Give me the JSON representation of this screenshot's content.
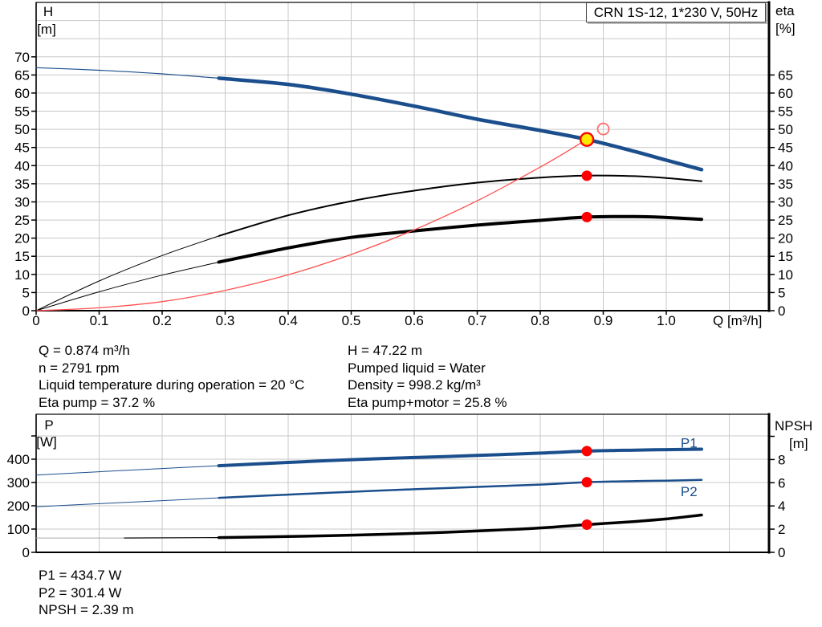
{
  "title_box": "CRN 1S-12, 1*230 V, 50Hz",
  "colors": {
    "curve_blue": "#1B4E8C",
    "curve_black": "#000000",
    "curve_red": "#FF5050",
    "marker_red": "#FF0000",
    "marker_red_light": "#FF7070",
    "marker_yellow": "#FFE600",
    "npsh_faint": "#A6A6A6",
    "grid": "#C9C9C9",
    "frame": "#000000",
    "text": "#000000"
  },
  "chart_data": [
    {
      "type": "line",
      "name": "qh-performance",
      "x_axis": {
        "unit_label": "Q [m³/h]",
        "range": [
          0,
          1.163
        ],
        "ticks": [
          [
            0,
            "0"
          ],
          [
            0.1,
            "0.1"
          ],
          [
            0.2,
            "0.2"
          ],
          [
            0.3,
            "0.3"
          ],
          [
            0.4,
            "0.4"
          ],
          [
            0.5,
            "0.5"
          ],
          [
            0.6,
            "0.6"
          ],
          [
            0.7,
            "0.7"
          ],
          [
            0.8,
            "0.8"
          ],
          [
            0.9,
            "0.9"
          ],
          [
            1.0,
            "1.0"
          ]
        ],
        "grid": [
          0.1,
          0.2,
          0.3,
          0.4,
          0.5,
          0.6,
          0.7,
          0.8,
          0.9,
          1.0,
          1.1
        ]
      },
      "y_left": {
        "label_lines": [
          "H",
          "[m]"
        ],
        "range": [
          0,
          85
        ],
        "grid": {
          "step": 5,
          "max": 80
        },
        "ticks": [
          [
            0,
            "0"
          ],
          [
            5,
            "5"
          ],
          [
            10,
            "10"
          ],
          [
            15,
            "15"
          ],
          [
            20,
            "20"
          ],
          [
            25,
            "25"
          ],
          [
            30,
            "30"
          ],
          [
            35,
            "35"
          ],
          [
            40,
            "40"
          ],
          [
            45,
            "45"
          ],
          [
            50,
            "50"
          ],
          [
            55,
            "55"
          ],
          [
            60,
            "60"
          ],
          [
            65,
            "65"
          ],
          [
            70,
            "70"
          ]
        ]
      },
      "y_right": {
        "label_lines": [
          "eta",
          "[%]"
        ],
        "range": [
          0,
          85
        ],
        "ticks": [
          [
            0,
            "0"
          ],
          [
            5,
            "5"
          ],
          [
            10,
            "10"
          ],
          [
            15,
            "15"
          ],
          [
            20,
            "20"
          ],
          [
            25,
            "25"
          ],
          [
            30,
            "30"
          ],
          [
            35,
            "35"
          ],
          [
            40,
            "40"
          ],
          [
            45,
            "45"
          ],
          [
            50,
            "50"
          ],
          [
            55,
            "55"
          ],
          [
            60,
            "60"
          ],
          [
            65,
            "65"
          ]
        ]
      },
      "series": [
        {
          "name": "head-curve-low-flow",
          "axis": "left",
          "color": "curve_blue",
          "width": 1.2,
          "points": [
            [
              0,
              67
            ],
            [
              0.1,
              66.3
            ],
            [
              0.2,
              65.3
            ],
            [
              0.29,
              64.1
            ]
          ]
        },
        {
          "name": "head-curve",
          "axis": "left",
          "color": "curve_blue",
          "width": 4.5,
          "points": [
            [
              0.29,
              64.1
            ],
            [
              0.4,
              62.4
            ],
            [
              0.5,
              59.7
            ],
            [
              0.6,
              56.4
            ],
            [
              0.7,
              52.8
            ],
            [
              0.8,
              49.7
            ],
            [
              0.874,
              47.22
            ],
            [
              0.95,
              43.9
            ],
            [
              1.0,
              41.5
            ],
            [
              1.056,
              38.9
            ]
          ]
        },
        {
          "name": "eta-pump-curve-low-flow",
          "axis": "right",
          "color": "curve_black",
          "width": 1,
          "points": [
            [
              0,
              0
            ],
            [
              0.1,
              8.2
            ],
            [
              0.2,
              15.2
            ],
            [
              0.29,
              20.6
            ]
          ]
        },
        {
          "name": "eta-pump-curve",
          "axis": "right",
          "color": "curve_black",
          "width": 2,
          "points": [
            [
              0.29,
              20.6
            ],
            [
              0.4,
              26.3
            ],
            [
              0.5,
              30.2
            ],
            [
              0.6,
              33.1
            ],
            [
              0.7,
              35.3
            ],
            [
              0.8,
              36.7
            ],
            [
              0.874,
              37.25
            ],
            [
              0.95,
              37.1
            ],
            [
              1.0,
              36.6
            ],
            [
              1.056,
              35.7
            ]
          ]
        },
        {
          "name": "eta-pump-motor-curve-low-flow",
          "axis": "right",
          "color": "curve_black",
          "width": 1,
          "points": [
            [
              0,
              0
            ],
            [
              0.1,
              5.2
            ],
            [
              0.2,
              9.8
            ],
            [
              0.29,
              13.4
            ]
          ]
        },
        {
          "name": "eta-pump-motor-curve",
          "axis": "right",
          "color": "curve_black",
          "width": 4,
          "points": [
            [
              0.29,
              13.4
            ],
            [
              0.4,
              17.3
            ],
            [
              0.5,
              20.2
            ],
            [
              0.6,
              22.0
            ],
            [
              0.7,
              23.6
            ],
            [
              0.8,
              24.9
            ],
            [
              0.874,
              25.8
            ],
            [
              0.95,
              25.95
            ],
            [
              1.0,
              25.7
            ],
            [
              1.056,
              25.2
            ]
          ]
        },
        {
          "name": "system-curve",
          "axis": "left",
          "color": "curve_red",
          "width": 1.3,
          "points": [
            [
              0,
              0
            ],
            [
              0.1,
              0.8
            ],
            [
              0.2,
              2.5
            ],
            [
              0.3,
              5.6
            ],
            [
              0.4,
              9.9
            ],
            [
              0.5,
              15.5
            ],
            [
              0.6,
              22.3
            ],
            [
              0.7,
              30.3
            ],
            [
              0.8,
              39.6
            ],
            [
              0.874,
              47.22
            ]
          ]
        }
      ],
      "markers": [
        {
          "name": "requested-duty-point",
          "type": "request",
          "axis": "left",
          "q": 0.9,
          "v": 50.1
        },
        {
          "name": "duty-point",
          "type": "duty",
          "axis": "left",
          "q": 0.874,
          "v": 47.22
        },
        {
          "name": "eta-pump-duty-point",
          "type": "dot",
          "axis": "right",
          "q": 0.874,
          "v": 37.2
        },
        {
          "name": "eta-pump-motor-duty-point",
          "type": "dot",
          "axis": "right",
          "q": 0.874,
          "v": 25.8
        }
      ]
    },
    {
      "type": "line",
      "name": "power-npsh",
      "x_axis": {
        "unit_label": "",
        "range": [
          0,
          1.163
        ],
        "ticks": [],
        "grid": [
          0.1,
          0.2,
          0.3,
          0.4,
          0.5,
          0.6,
          0.7,
          0.8,
          0.9,
          1.0,
          1.1
        ]
      },
      "y_left": {
        "label_lines": [
          "P",
          "[W]"
        ],
        "range": [
          0,
          593
        ],
        "grid": {
          "step": 100,
          "max": 500
        },
        "ticks": [
          [
            0,
            "0"
          ],
          [
            100,
            "100"
          ],
          [
            200,
            "200"
          ],
          [
            300,
            "300"
          ],
          [
            400,
            "400"
          ],
          [
            500,
            ""
          ]
        ]
      },
      "y_right": {
        "label_lines": [
          "NPSH",
          "[m]"
        ],
        "range": [
          0,
          11.9
        ],
        "ticks": [
          [
            0,
            "0"
          ],
          [
            2,
            "2"
          ],
          [
            4,
            "4"
          ],
          [
            6,
            "6"
          ],
          [
            8,
            "8"
          ],
          [
            10,
            ""
          ]
        ]
      },
      "series": [
        {
          "name": "p1-curve-low-flow",
          "axis": "left",
          "color": "curve_blue",
          "width": 1,
          "points": [
            [
              0,
              332
            ],
            [
              0.1,
              346
            ],
            [
              0.2,
              360
            ],
            [
              0.29,
              372
            ]
          ]
        },
        {
          "name": "p1-curve",
          "axis": "left",
          "color": "curve_blue",
          "width": 4,
          "points": [
            [
              0.29,
              372
            ],
            [
              0.4,
              386
            ],
            [
              0.5,
              398
            ],
            [
              0.6,
              407
            ],
            [
              0.7,
              416
            ],
            [
              0.8,
              426
            ],
            [
              0.874,
              434.7
            ],
            [
              0.95,
              439
            ],
            [
              1.0,
              441
            ],
            [
              1.056,
              443
            ]
          ]
        },
        {
          "name": "p2-curve-low-flow",
          "axis": "left",
          "color": "curve_blue",
          "width": 1,
          "points": [
            [
              0,
              196
            ],
            [
              0.1,
              209
            ],
            [
              0.2,
              222
            ],
            [
              0.29,
              234
            ]
          ]
        },
        {
          "name": "p2-curve",
          "axis": "left",
          "color": "curve_blue",
          "width": 2.5,
          "points": [
            [
              0.29,
              234
            ],
            [
              0.4,
              248
            ],
            [
              0.5,
              260
            ],
            [
              0.6,
              271
            ],
            [
              0.7,
              281
            ],
            [
              0.8,
              291
            ],
            [
              0.874,
              301.4
            ],
            [
              0.95,
              306
            ],
            [
              1.0,
              308
            ],
            [
              1.056,
              311
            ]
          ]
        },
        {
          "name": "npsh-curve-pre-min-flow",
          "axis": "right",
          "color": "npsh_faint",
          "width": 1,
          "points": [
            [
              0,
              1.24
            ],
            [
              0.14,
              1.24
            ]
          ]
        },
        {
          "name": "npsh-curve-low-flow",
          "axis": "right",
          "color": "curve_black",
          "width": 1.2,
          "points": [
            [
              0.14,
              1.24
            ],
            [
              0.29,
              1.27
            ]
          ]
        },
        {
          "name": "npsh-curve",
          "axis": "right",
          "color": "curve_black",
          "width": 3.5,
          "points": [
            [
              0.29,
              1.27
            ],
            [
              0.4,
              1.36
            ],
            [
              0.5,
              1.48
            ],
            [
              0.6,
              1.63
            ],
            [
              0.7,
              1.84
            ],
            [
              0.8,
              2.1
            ],
            [
              0.874,
              2.39
            ],
            [
              0.95,
              2.66
            ],
            [
              1.0,
              2.88
            ],
            [
              1.056,
              3.22
            ]
          ]
        }
      ],
      "series_labels": [
        {
          "name": "p1-series-label",
          "text": "P1",
          "q": 1.036,
          "v": 470,
          "axis": "left"
        },
        {
          "name": "p2-series-label",
          "text": "P2",
          "q": 1.036,
          "v": 262,
          "axis": "left"
        }
      ],
      "markers": [
        {
          "name": "p1-duty-point",
          "type": "dot",
          "axis": "left",
          "q": 0.874,
          "v": 434.7
        },
        {
          "name": "p2-duty-point",
          "type": "dot",
          "axis": "left",
          "q": 0.874,
          "v": 301.4
        },
        {
          "name": "npsh-duty-point",
          "type": "dot",
          "axis": "right",
          "q": 0.874,
          "v": 2.39
        }
      ]
    }
  ],
  "annotations": {
    "operating_left": [
      "Q = 0.874 m³/h",
      "n = 2791 rpm",
      "Liquid temperature during operation = 20 °C",
      "Eta pump = 37.2 %"
    ],
    "operating_right": [
      "H = 47.22 m",
      "Pumped liquid = Water",
      "Density = 998.2 kg/m³",
      "Eta pump+motor = 25.8 %"
    ],
    "power_block": [
      "P1 = 434.7 W",
      "P2 = 301.4 W",
      "NPSH = 2.39 m"
    ]
  }
}
